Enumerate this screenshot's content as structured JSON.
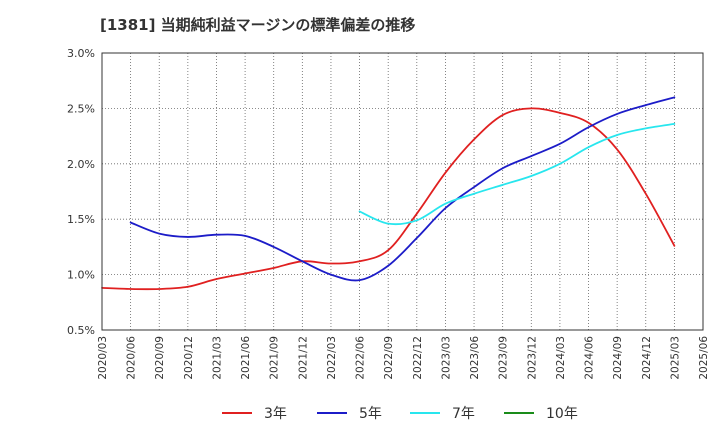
{
  "chart_data": {
    "type": "line",
    "title": "[1381]  当期純利益マージンの標準偏差の推移",
    "xlabel": "",
    "ylabel": "",
    "ylim": [
      0.5,
      3.0
    ],
    "y_ticks": [
      "0.5%",
      "1.0%",
      "1.5%",
      "2.0%",
      "2.5%",
      "3.0%"
    ],
    "x_ticks": [
      "2020/03",
      "2020/06",
      "2020/09",
      "2020/12",
      "2021/03",
      "2021/06",
      "2021/09",
      "2021/12",
      "2022/03",
      "2022/06",
      "2022/09",
      "2022/12",
      "2023/03",
      "2023/06",
      "2023/09",
      "2023/12",
      "2024/03",
      "2024/06",
      "2024/09",
      "2024/12",
      "2025/03",
      "2025/06"
    ],
    "grid": true,
    "legend_position": "bottom",
    "series": [
      {
        "name": "3年",
        "color": "#e02020",
        "x": [
          "2020/03",
          "2020/06",
          "2020/09",
          "2020/12",
          "2021/03",
          "2021/06",
          "2021/09",
          "2021/12",
          "2022/03",
          "2022/06",
          "2022/09",
          "2022/12",
          "2023/03",
          "2023/06",
          "2023/09",
          "2023/12",
          "2024/03",
          "2024/06",
          "2024/09",
          "2024/12",
          "2025/03"
        ],
        "values": [
          0.88,
          0.87,
          0.87,
          0.89,
          0.96,
          1.01,
          1.06,
          1.12,
          1.1,
          1.12,
          1.22,
          1.55,
          1.92,
          2.22,
          2.44,
          2.5,
          2.46,
          2.37,
          2.13,
          1.73,
          1.26
        ]
      },
      {
        "name": "5年",
        "color": "#1c1cc8",
        "x": [
          "2020/06",
          "2020/09",
          "2020/12",
          "2021/03",
          "2021/06",
          "2021/09",
          "2021/12",
          "2022/03",
          "2022/06",
          "2022/09",
          "2022/12",
          "2023/03",
          "2023/06",
          "2023/09",
          "2023/12",
          "2024/03",
          "2024/06",
          "2024/09",
          "2024/12",
          "2025/03"
        ],
        "values": [
          1.47,
          1.37,
          1.34,
          1.36,
          1.35,
          1.25,
          1.12,
          1.0,
          0.95,
          1.08,
          1.33,
          1.6,
          1.79,
          1.96,
          2.07,
          2.18,
          2.33,
          2.45,
          2.53,
          2.6
        ]
      },
      {
        "name": "7年",
        "color": "#28e6ee",
        "x": [
          "2022/06",
          "2022/09",
          "2022/12",
          "2023/03",
          "2023/06",
          "2023/09",
          "2023/12",
          "2024/03",
          "2024/06",
          "2024/09",
          "2024/12",
          "2025/03"
        ],
        "values": [
          1.57,
          1.46,
          1.49,
          1.64,
          1.73,
          1.81,
          1.89,
          2.0,
          2.15,
          2.26,
          2.32,
          2.36
        ]
      },
      {
        "name": "10年",
        "color": "#1a8c1a",
        "x": [],
        "values": []
      }
    ]
  }
}
